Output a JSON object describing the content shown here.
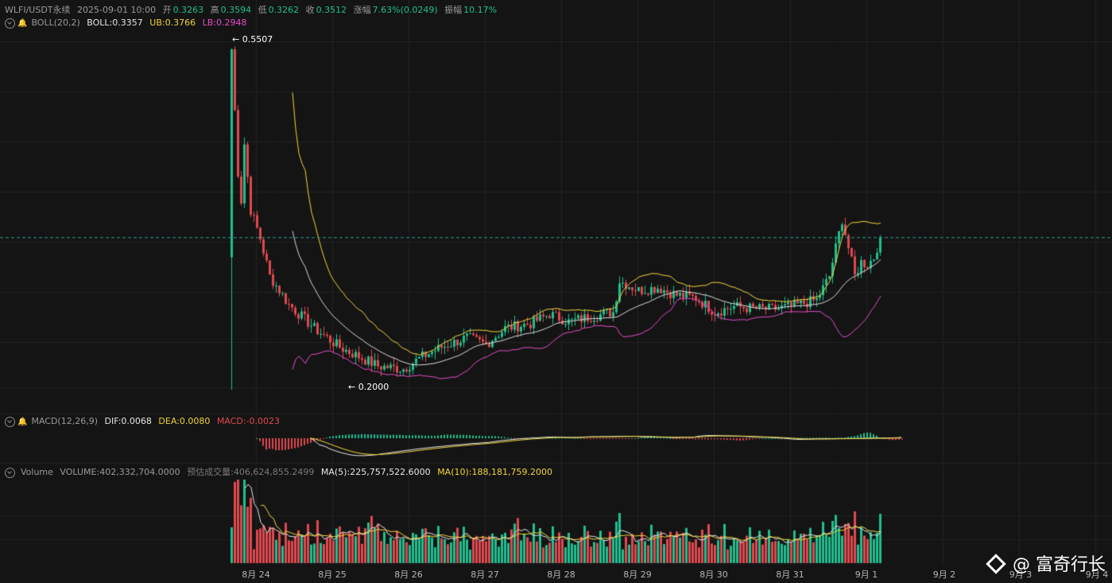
{
  "header": {
    "symbol": "WLFI/USDT永续",
    "datetime": "2025-09-01 10:00",
    "open_label": "开",
    "open": "0.3263",
    "high_label": "高",
    "high": "0.3594",
    "low_label": "低",
    "low": "0.3262",
    "close_label": "收",
    "close": "0.3512",
    "change_label": "涨幅",
    "change": "7.63%(0.0249)",
    "amplitude_label": "振幅",
    "amplitude": "10.17%"
  },
  "boll": {
    "name": "BOLL(20,2)",
    "mid_label": "BOLL:",
    "mid": "0.3357",
    "ub_label": "UB:",
    "ub": "0.3766",
    "lb_label": "LB:",
    "lb": "0.2948"
  },
  "macd": {
    "name": "MACD(12,26,9)",
    "dif_label": "DIF:",
    "dif": "0.0068",
    "dea_label": "DEA:",
    "dea": "0.0080",
    "macd_label": "MACD:",
    "macd": "-0.0023"
  },
  "volume": {
    "name": "Volume",
    "vol_label": "VOLUME:",
    "vol": "402,332,704.0000",
    "est_label": "预估成交量:",
    "est": "406,624,855.2499",
    "ma5_label": "MA(5):",
    "ma5": "225,757,522.6000",
    "ma10_label": "MA(10):",
    "ma10": "188,181,759.2000"
  },
  "x_axis": [
    "8月 24",
    "8月 25",
    "8月 26",
    "8月 27",
    "8月 28",
    "8月 29",
    "8月 30",
    "8月 31",
    "9月 1",
    "9月 2",
    "9月 3",
    "9月 4"
  ],
  "annotations": {
    "high": "← 0.5507",
    "low": "← 0.2000"
  },
  "watermark": "@ 富奇行长",
  "colors": {
    "up": "#1fbf8f",
    "down": "#e0494f",
    "mid": "#d8d8d8",
    "ub": "#f0d43a",
    "lb": "#e54dc8",
    "bg": "#141414",
    "grid": "#222222"
  },
  "chart_data": {
    "type": "candlestick",
    "interval": "hourly",
    "price_range": [
      0.19,
      0.56
    ],
    "last_price": 0.3512,
    "listing_high": 0.5507,
    "period_low": 0.2,
    "price_path": [
      [
        "8月 23 22:00",
        0.33
      ],
      [
        "8月 23 22:00",
        0.55
      ],
      [
        "8月 24 00:00",
        0.42
      ],
      [
        "8月 24 01:00",
        0.39
      ],
      [
        "8月 24 02:00",
        0.45
      ],
      [
        "8月 24 04:00",
        0.38
      ],
      [
        "8月 24 07:00",
        0.35
      ],
      [
        "8月 24 10:00",
        0.31
      ],
      [
        "8月 24 16:00",
        0.28
      ],
      [
        "8月 25 00:00",
        0.255
      ],
      [
        "8月 25 08:00",
        0.235
      ],
      [
        "8月 25 14:00",
        0.225
      ],
      [
        "8月 25 20:00",
        0.215
      ],
      [
        "8月 26 04:00",
        0.212
      ],
      [
        "8月 26 10:00",
        0.225
      ],
      [
        "8月 26 16:00",
        0.235
      ],
      [
        "8月 27 00:00",
        0.245
      ],
      [
        "8月 27 06:00",
        0.238
      ],
      [
        "8月 27 12:00",
        0.255
      ],
      [
        "8月 27 20:00",
        0.26
      ],
      [
        "8月 28 02:00",
        0.27
      ],
      [
        "8月 28 08:00",
        0.262
      ],
      [
        "8月 28 16:00",
        0.268
      ],
      [
        "8月 28 22:00",
        0.272
      ],
      [
        "8月 29 00:00",
        0.305
      ],
      [
        "8月 29 06:00",
        0.295
      ],
      [
        "8月 29 12:00",
        0.298
      ],
      [
        "8月 29 18:00",
        0.29
      ],
      [
        "8月 30 00:00",
        0.287
      ],
      [
        "8月 30 06:00",
        0.272
      ],
      [
        "8月 30 12:00",
        0.278
      ],
      [
        "8月 30 18:00",
        0.276
      ],
      [
        "8月 31 00:00",
        0.275
      ],
      [
        "8月 31 06:00",
        0.278
      ],
      [
        "8月 31 14:00",
        0.285
      ],
      [
        "8月 31 18:00",
        0.31
      ],
      [
        "8月 31 22:00",
        0.37
      ],
      [
        "9月 1 00:00",
        0.34
      ],
      [
        "9月 1 02:00",
        0.31
      ],
      [
        "9月 1 04:00",
        0.325
      ],
      [
        "9月 1 06:00",
        0.322
      ],
      [
        "9月 1 08:00",
        0.33
      ],
      [
        "9月 1 10:00",
        0.3512
      ]
    ]
  }
}
